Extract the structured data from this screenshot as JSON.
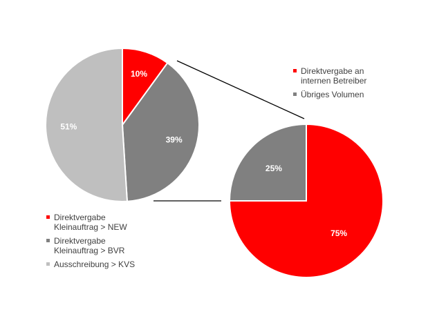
{
  "chart_data": [
    {
      "type": "pie",
      "slices": [
        {
          "label": "Direktvergabe Kleinauftrag > NEW",
          "value": 10,
          "value_label": "10%",
          "color": "#ff0000"
        },
        {
          "label": "Direktvergabe Kleinauftrag > BVR",
          "value": 39,
          "value_label": "39%",
          "color": "#808080"
        },
        {
          "label": "Ausschreibung > KVS",
          "value": 51,
          "value_label": "51%",
          "color": "#bfbfbf"
        }
      ],
      "legend_position": "bottom-left"
    },
    {
      "type": "pie",
      "slices": [
        {
          "label": "Direktvergabe an internen Betreiber",
          "value": 75,
          "value_label": "75%",
          "color": "#ff0000"
        },
        {
          "label": "Übriges Volumen",
          "value": 25,
          "value_label": "25%",
          "color": "#808080"
        }
      ],
      "legend_position": "top-right"
    }
  ],
  "legend_left": [
    {
      "label": "Direktvergabe\nKleinauftrag > NEW",
      "color": "#ff0000"
    },
    {
      "label": "Direktvergabe\nKleinauftrag > BVR",
      "color": "#808080"
    },
    {
      "label": "Ausschreibung > KVS",
      "color": "#bfbfbf"
    }
  ],
  "legend_right": [
    {
      "label": "Direktvergabe an\ninternen Betreiber",
      "color": "#ff0000"
    },
    {
      "label": "Übriges Volumen",
      "color": "#808080"
    }
  ]
}
